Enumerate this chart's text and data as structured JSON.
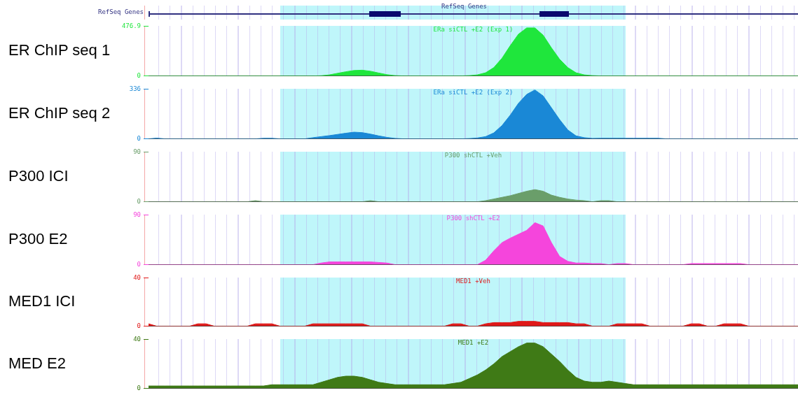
{
  "chart_data": [
    {
      "type": "other",
      "title": "RefSeq Genes",
      "ylabel": "RefSeq Genes"
    },
    {
      "type": "area",
      "title": "ERa siCTL +E2 (Exp 1)",
      "ylabel": "ER ChIP seq 1",
      "categories": [
        null,
        null,
        null,
        null,
        null,
        null,
        null,
        null,
        null,
        null,
        null,
        null,
        null,
        null,
        null,
        null,
        null,
        null,
        null,
        null,
        null,
        null,
        null,
        null,
        null,
        null,
        null,
        null,
        null,
        null,
        null,
        null,
        null,
        null,
        null,
        null,
        null,
        null,
        null,
        null,
        null,
        null,
        null,
        null,
        null,
        null,
        null,
        null,
        null,
        null,
        null,
        null,
        null,
        null,
        null,
        null,
        null,
        null,
        null,
        null,
        null,
        null,
        null,
        null,
        null,
        null,
        null,
        null,
        null,
        null,
        null,
        null,
        null,
        null,
        null,
        null,
        null,
        null,
        null,
        null
      ],
      "ylim": [
        0,
        476.9
      ],
      "yticks": [
        0,
        476.9
      ],
      "tick_labels": "y",
      "marker": "none",
      "legend": false,
      "series": [
        {
          "color": "#1fe63c",
          "values": [
            0,
            0,
            0,
            0,
            0,
            0,
            0,
            0,
            0,
            0,
            0,
            0,
            0,
            0,
            0,
            0,
            0,
            0,
            0,
            0,
            0,
            2,
            10,
            25,
            40,
            52,
            55,
            45,
            28,
            12,
            3,
            0,
            0,
            0,
            0,
            0,
            0,
            0,
            0,
            3,
            10,
            30,
            80,
            170,
            290,
            400,
            460,
            460,
            390,
            270,
            160,
            80,
            30,
            10,
            3,
            0,
            0,
            0,
            0,
            0,
            0,
            0,
            0,
            0,
            0,
            0,
            0,
            0,
            0,
            0,
            0,
            0,
            0,
            0,
            0,
            0,
            0,
            0,
            0,
            0
          ]
        }
      ]
    },
    {
      "type": "area",
      "title": "ERa siCTL +E2 (Exp 2)",
      "ylabel": "ER ChIP seq 2",
      "categories": [
        null,
        null,
        null,
        null,
        null,
        null,
        null,
        null,
        null,
        null,
        null,
        null,
        null,
        null,
        null,
        null,
        null,
        null,
        null,
        null,
        null,
        null,
        null,
        null,
        null,
        null,
        null,
        null,
        null,
        null,
        null,
        null,
        null,
        null,
        null,
        null,
        null,
        null,
        null,
        null,
        null,
        null,
        null,
        null,
        null,
        null,
        null,
        null,
        null,
        null,
        null,
        null,
        null,
        null,
        null,
        null,
        null,
        null,
        null,
        null,
        null,
        null,
        null,
        null,
        null,
        null,
        null,
        null,
        null,
        null,
        null,
        null,
        null,
        null,
        null,
        null,
        null,
        null,
        null,
        null
      ],
      "ylim": [
        0,
        336
      ],
      "yticks": [
        0,
        336
      ],
      "tick_labels": "y",
      "marker": "none",
      "legend": false,
      "series": [
        {
          "color": "#1a88d6",
          "values": [
            0,
            5,
            0,
            0,
            0,
            0,
            0,
            0,
            0,
            0,
            0,
            0,
            0,
            0,
            4,
            4,
            0,
            0,
            0,
            0,
            8,
            15,
            22,
            30,
            38,
            45,
            42,
            32,
            20,
            10,
            3,
            0,
            0,
            0,
            0,
            0,
            0,
            0,
            0,
            2,
            6,
            15,
            40,
            90,
            160,
            240,
            300,
            330,
            290,
            210,
            130,
            60,
            20,
            8,
            3,
            4,
            4,
            4,
            4,
            4,
            4,
            4,
            4,
            0,
            0,
            0,
            0,
            0,
            0,
            0,
            0,
            0,
            0,
            0,
            0,
            0,
            0,
            0,
            0,
            0
          ]
        }
      ]
    },
    {
      "type": "area",
      "title": "P300 shCTL +Veh",
      "ylabel": "P300 ICI",
      "categories": [
        null,
        null,
        null,
        null,
        null,
        null,
        null,
        null,
        null,
        null,
        null,
        null,
        null,
        null,
        null,
        null,
        null,
        null,
        null,
        null,
        null,
        null,
        null,
        null,
        null,
        null,
        null,
        null,
        null,
        null,
        null,
        null,
        null,
        null,
        null,
        null,
        null,
        null,
        null,
        null,
        null,
        null,
        null,
        null,
        null,
        null,
        null,
        null,
        null,
        null,
        null,
        null,
        null,
        null,
        null,
        null,
        null,
        null,
        null,
        null,
        null,
        null,
        null,
        null,
        null,
        null,
        null,
        null,
        null,
        null,
        null,
        null,
        null,
        null,
        null,
        null,
        null,
        null,
        null,
        null
      ],
      "ylim": [
        0,
        90
      ],
      "yticks": [
        0,
        90
      ],
      "tick_labels": "y",
      "marker": "none",
      "legend": false,
      "series": [
        {
          "color": "#6a9e6a",
          "values": [
            0,
            0,
            0,
            0,
            0,
            0,
            0,
            0,
            0,
            0,
            0,
            0,
            0,
            2,
            0,
            0,
            0,
            0,
            0,
            0,
            0,
            0,
            0,
            0,
            0,
            0,
            0,
            2,
            0,
            0,
            0,
            0,
            0,
            0,
            0,
            0,
            0,
            0,
            0,
            0,
            0,
            2,
            5,
            8,
            11,
            15,
            19,
            22,
            19,
            12,
            8,
            5,
            3,
            2,
            0,
            2,
            2,
            0,
            0,
            0,
            0,
            0,
            0,
            0,
            0,
            0,
            0,
            0,
            0,
            0,
            0,
            0,
            0,
            0,
            0,
            0,
            0,
            0,
            0,
            0
          ]
        }
      ]
    },
    {
      "type": "area",
      "title": "P300 shCTL +E2",
      "ylabel": "P300 E2",
      "categories": [
        null,
        null,
        null,
        null,
        null,
        null,
        null,
        null,
        null,
        null,
        null,
        null,
        null,
        null,
        null,
        null,
        null,
        null,
        null,
        null,
        null,
        null,
        null,
        null,
        null,
        null,
        null,
        null,
        null,
        null,
        null,
        null,
        null,
        null,
        null,
        null,
        null,
        null,
        null,
        null,
        null,
        null,
        null,
        null,
        null,
        null,
        null,
        null,
        null,
        null,
        null,
        null,
        null,
        null,
        null,
        null,
        null,
        null,
        null,
        null,
        null,
        null,
        null,
        null,
        null,
        null,
        null,
        null,
        null,
        null,
        null,
        null,
        null,
        null,
        null,
        null,
        null,
        null,
        null,
        null
      ],
      "ylim": [
        0,
        90
      ],
      "yticks": [
        0,
        90
      ],
      "tick_labels": "y",
      "marker": "none",
      "legend": false,
      "series": [
        {
          "color": "#f545dc",
          "values": [
            0,
            0,
            0,
            0,
            0,
            0,
            0,
            0,
            0,
            0,
            0,
            0,
            0,
            0,
            0,
            0,
            0,
            0,
            0,
            0,
            0,
            3,
            5,
            5,
            5,
            5,
            5,
            5,
            4,
            3,
            0,
            0,
            0,
            0,
            0,
            0,
            0,
            0,
            0,
            0,
            0,
            8,
            25,
            40,
            48,
            55,
            62,
            76,
            70,
            40,
            15,
            6,
            3,
            3,
            2,
            2,
            0,
            2,
            2,
            0,
            0,
            0,
            0,
            0,
            0,
            0,
            2,
            2,
            2,
            2,
            2,
            2,
            2,
            0,
            0,
            0,
            0,
            0,
            0,
            0
          ]
        }
      ]
    },
    {
      "type": "area",
      "title": "MED1 +Veh",
      "ylabel": "MED1 ICI",
      "categories": [
        null,
        null,
        null,
        null,
        null,
        null,
        null,
        null,
        null,
        null,
        null,
        null,
        null,
        null,
        null,
        null,
        null,
        null,
        null,
        null,
        null,
        null,
        null,
        null,
        null,
        null,
        null,
        null,
        null,
        null,
        null,
        null,
        null,
        null,
        null,
        null,
        null,
        null,
        null,
        null,
        null,
        null,
        null,
        null,
        null,
        null,
        null,
        null,
        null,
        null,
        null,
        null,
        null,
        null,
        null,
        null,
        null,
        null,
        null,
        null,
        null,
        null,
        null,
        null,
        null,
        null,
        null,
        null,
        null,
        null,
        null,
        null,
        null,
        null,
        null,
        null,
        null,
        null,
        null,
        null
      ],
      "ylim": [
        0,
        40
      ],
      "yticks": [
        0,
        40
      ],
      "tick_labels": "y",
      "marker": "none",
      "legend": false,
      "series": [
        {
          "color": "#e01818",
          "values": [
            2,
            0,
            0,
            0,
            0,
            0,
            2,
            2,
            0,
            0,
            0,
            0,
            0,
            2,
            2,
            2,
            0,
            0,
            0,
            0,
            2,
            2,
            2,
            2,
            2,
            2,
            2,
            0,
            0,
            0,
            0,
            0,
            0,
            0,
            0,
            0,
            0,
            2,
            2,
            0,
            0,
            2,
            3,
            3,
            3,
            4,
            4,
            4,
            3,
            3,
            3,
            3,
            2,
            2,
            0,
            0,
            0,
            2,
            2,
            2,
            2,
            0,
            0,
            0,
            0,
            0,
            2,
            2,
            0,
            0,
            2,
            2,
            2,
            0,
            0,
            0,
            0,
            0,
            0,
            0
          ]
        }
      ]
    },
    {
      "type": "area",
      "title": "MED1 +E2",
      "ylabel": "MED E2",
      "categories": [
        null,
        null,
        null,
        null,
        null,
        null,
        null,
        null,
        null,
        null,
        null,
        null,
        null,
        null,
        null,
        null,
        null,
        null,
        null,
        null,
        null,
        null,
        null,
        null,
        null,
        null,
        null,
        null,
        null,
        null,
        null,
        null,
        null,
        null,
        null,
        null,
        null,
        null,
        null,
        null,
        null,
        null,
        null,
        null,
        null,
        null,
        null,
        null,
        null,
        null,
        null,
        null,
        null,
        null,
        null,
        null,
        null,
        null,
        null,
        null,
        null,
        null,
        null,
        null,
        null,
        null,
        null,
        null,
        null,
        null,
        null,
        null,
        null,
        null,
        null,
        null,
        null,
        null,
        null,
        null
      ],
      "ylim": [
        0,
        40
      ],
      "yticks": [
        0,
        40
      ],
      "tick_labels": "y",
      "marker": "none",
      "legend": false,
      "series": [
        {
          "color": "#3f7a16",
          "values": [
            2,
            2,
            2,
            2,
            2,
            2,
            2,
            2,
            2,
            2,
            2,
            2,
            2,
            2,
            2,
            3,
            3,
            3,
            3,
            3,
            3,
            5,
            7,
            9,
            10,
            10,
            9,
            7,
            5,
            4,
            3,
            3,
            3,
            3,
            3,
            3,
            3,
            4,
            5,
            8,
            11,
            15,
            20,
            26,
            30,
            34,
            37,
            37,
            34,
            28,
            22,
            15,
            9,
            6,
            5,
            5,
            6,
            5,
            4,
            3,
            3,
            3,
            3,
            3,
            3,
            3,
            3,
            3,
            3,
            3,
            3,
            3,
            3,
            3,
            3,
            3,
            3,
            3,
            3,
            3
          ]
        }
      ]
    }
  ]
}
